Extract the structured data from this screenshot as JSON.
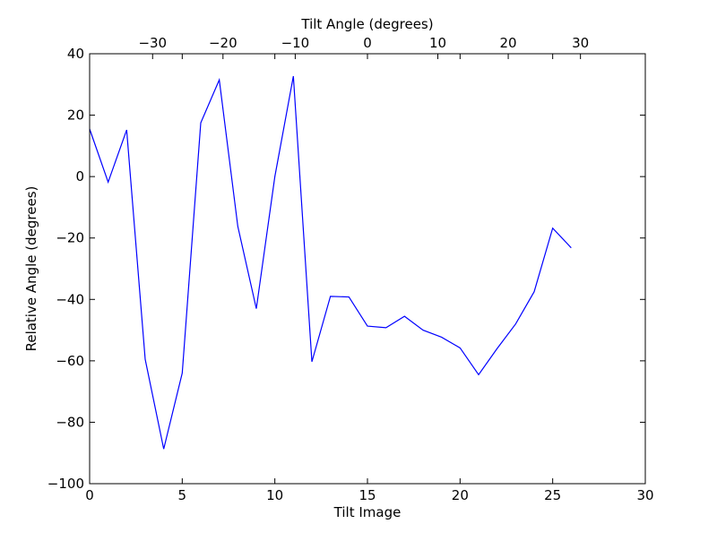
{
  "chart_data": {
    "type": "line",
    "xlabel": "Tilt Image",
    "ylabel": "Relative Angle (degrees)",
    "top_xlabel": "Tilt Angle (degrees)",
    "xlim": [
      0,
      30
    ],
    "ylim": [
      -100,
      40
    ],
    "xticks": [
      0,
      5,
      10,
      15,
      20,
      25,
      30
    ],
    "yticks": [
      -100,
      -80,
      -60,
      -40,
      -20,
      0,
      20,
      40
    ],
    "top_xticks": [
      {
        "label": "−30",
        "tilt_image": 3.4
      },
      {
        "label": "−20",
        "tilt_image": 7.2
      },
      {
        "label": "−10",
        "tilt_image": 11.1
      },
      {
        "label": "0",
        "tilt_image": 15.0
      },
      {
        "label": "10",
        "tilt_image": 18.8
      },
      {
        "label": "20",
        "tilt_image": 22.6
      },
      {
        "label": "30",
        "tilt_image": 26.5
      }
    ],
    "grid": false,
    "series": [
      {
        "color": "#0000ff",
        "x": [
          0,
          1,
          2,
          3,
          4,
          5,
          6,
          7,
          8,
          9,
          10,
          11,
          12,
          13,
          14,
          15,
          16,
          17,
          18,
          19,
          20,
          21,
          22,
          23,
          24,
          25,
          26
        ],
        "y": [
          15.5,
          -1.8,
          15.2,
          -59.5,
          -88.7,
          -64,
          17.5,
          31.5,
          -16.2,
          -43,
          0,
          32.7,
          -60.3,
          -39,
          -39.2,
          -48.7,
          -49.2,
          -45.5,
          -50,
          -52.3,
          -55.8,
          -64.5,
          -56,
          -48,
          -37.5,
          -16.8,
          -23.2
        ]
      }
    ]
  }
}
